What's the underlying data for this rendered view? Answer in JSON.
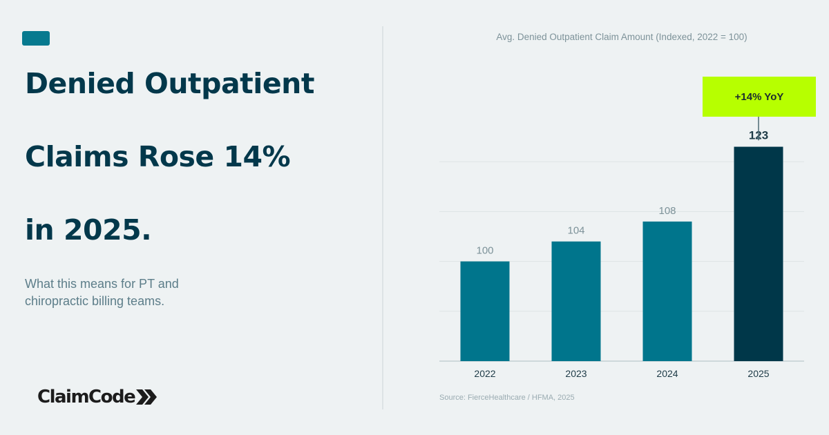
{
  "headline": {
    "line1": "Denied Outpatient",
    "line2": "Claims Rose 14%",
    "line3": "in 2025."
  },
  "subtitle": {
    "line1": "What this means for PT and",
    "line2": "chiropractic billing teams."
  },
  "brand": {
    "name": "ClaimCode"
  },
  "colors": {
    "background": "#eef2f3",
    "headline": "#03384b",
    "bar": "#00758c",
    "bar_highlight": "#003749",
    "callout": "#b7ff00"
  },
  "chart_data": {
    "type": "bar",
    "title": "Avg. Denied Outpatient Claim Amount (Indexed, 2022 = 100)",
    "categories": [
      "2022",
      "2023",
      "2024",
      "2025"
    ],
    "values": [
      100,
      104,
      108,
      123
    ],
    "data_labels": [
      "100",
      "104",
      "108",
      "123"
    ],
    "highlight_index": 3,
    "ylim": [
      80,
      130
    ],
    "grid": true,
    "annotation": {
      "text": "+14% YoY",
      "category": "2025"
    },
    "source": "Source: FierceHealthcare / HFMA, 2025"
  }
}
